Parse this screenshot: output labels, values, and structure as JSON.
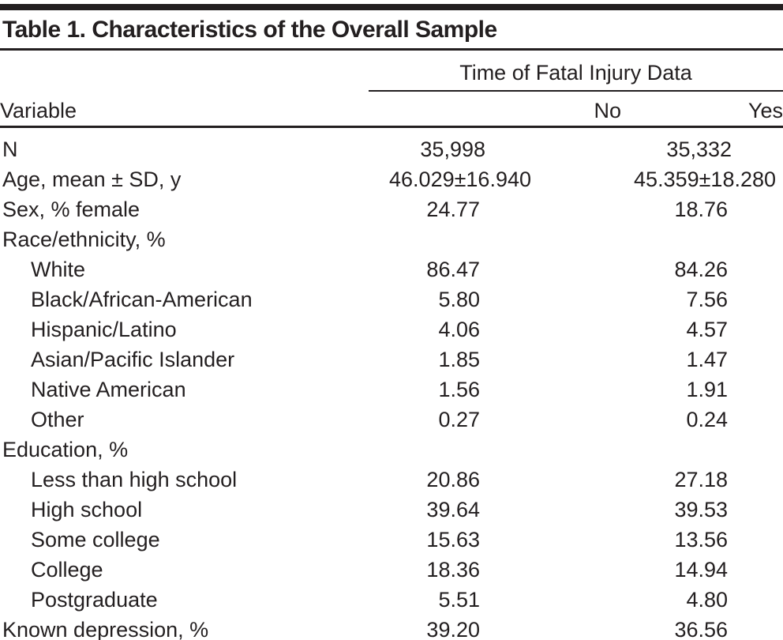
{
  "title": "Table 1. Characteristics of the Overall Sample",
  "colors": {
    "text": "#231f20",
    "rule": "#231f20",
    "background": "#ffffff"
  },
  "table": {
    "span_header": "Time of Fatal Injury Data",
    "columns": {
      "variable": "Variable",
      "no": "No",
      "yes": "Yes"
    },
    "rows": [
      {
        "label": "N",
        "no": "35,998",
        "yes": "35,332"
      },
      {
        "label": "Age, mean ± SD, y",
        "no": "46.029±16.940",
        "yes": "45.359±18.280"
      },
      {
        "label": "Sex, % female",
        "no": "24.77",
        "yes": "18.76"
      },
      {
        "label": "Race/ethnicity, %",
        "no": "",
        "yes": ""
      },
      {
        "label": "White",
        "no": "86.47",
        "yes": "84.26"
      },
      {
        "label": "Black/African-American",
        "no": "5.80",
        "yes": "7.56"
      },
      {
        "label": "Hispanic/Latino",
        "no": "4.06",
        "yes": "4.57"
      },
      {
        "label": "Asian/Pacific Islander",
        "no": "1.85",
        "yes": "1.47"
      },
      {
        "label": "Native American",
        "no": "1.56",
        "yes": "1.91"
      },
      {
        "label": "Other",
        "no": "0.27",
        "yes": "0.24"
      },
      {
        "label": "Education, %",
        "no": "",
        "yes": ""
      },
      {
        "label": "Less than high school",
        "no": "20.86",
        "yes": "27.18"
      },
      {
        "label": "High school",
        "no": "39.64",
        "yes": "39.53"
      },
      {
        "label": "Some college",
        "no": "15.63",
        "yes": "13.56"
      },
      {
        "label": "College",
        "no": "18.36",
        "yes": "14.94"
      },
      {
        "label": "Postgraduate",
        "no": "5.51",
        "yes": "4.80"
      },
      {
        "label": "Known depression, %",
        "no": "39.20",
        "yes": "36.56"
      }
    ]
  }
}
